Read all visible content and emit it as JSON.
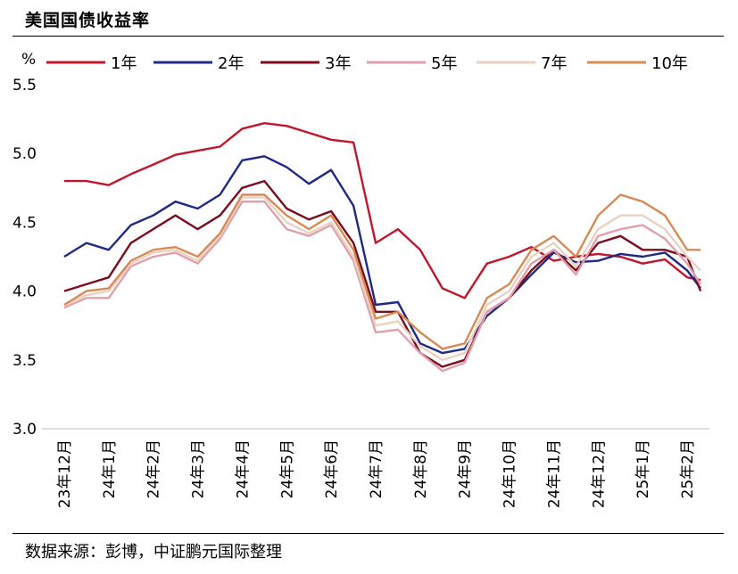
{
  "header": {
    "title": "美国国债收益率"
  },
  "footer": {
    "source": "数据来源：彭博，中证鹏元国际整理"
  },
  "chart_data": {
    "type": "line",
    "unit_label": "%",
    "ylim": [
      3.0,
      5.5
    ],
    "y_ticks": [
      3.0,
      3.5,
      4.0,
      4.5,
      5.0,
      5.5
    ],
    "y_tick_labels": [
      "3.0",
      "3.5",
      "4.0",
      "4.5",
      "5.0",
      "5.5"
    ],
    "x_tick_labels": [
      "23年12月",
      "24年1月",
      "24年2月",
      "24年3月",
      "24年4月",
      "24年5月",
      "24年6月",
      "24年7月",
      "24年8月",
      "24年9月",
      "24年10月",
      "24年11月",
      "24年12月",
      "25年1月",
      "25年2月"
    ],
    "grid": false,
    "legend_position": "top",
    "x_index": [
      0,
      0.5,
      1,
      1.5,
      2,
      2.5,
      3,
      3.5,
      4,
      4.5,
      5,
      5.5,
      6,
      6.5,
      7,
      7.5,
      8,
      8.5,
      9,
      9.5,
      10,
      10.5,
      11,
      11.5,
      12,
      12.5,
      13,
      13.5,
      14,
      14.3
    ],
    "series": [
      {
        "name": "1年",
        "color": "#c0172b",
        "values": [
          4.8,
          4.8,
          4.77,
          4.85,
          4.92,
          4.99,
          5.02,
          5.05,
          5.18,
          5.22,
          5.2,
          5.15,
          5.1,
          5.08,
          4.35,
          4.45,
          4.3,
          4.02,
          3.95,
          4.2,
          4.25,
          4.32,
          4.22,
          4.25,
          4.27,
          4.25,
          4.2,
          4.23,
          4.1,
          4.08
        ]
      },
      {
        "name": "2年",
        "color": "#1f2a85",
        "values": [
          4.25,
          4.35,
          4.3,
          4.48,
          4.55,
          4.65,
          4.6,
          4.7,
          4.95,
          4.98,
          4.9,
          4.78,
          4.88,
          4.62,
          3.9,
          3.92,
          3.62,
          3.55,
          3.58,
          3.82,
          3.95,
          4.12,
          4.28,
          4.21,
          4.22,
          4.27,
          4.25,
          4.28,
          4.15,
          4.02
        ]
      },
      {
        "name": "3年",
        "color": "#7b0d1e",
        "values": [
          4.0,
          4.05,
          4.1,
          4.35,
          4.45,
          4.55,
          4.45,
          4.55,
          4.75,
          4.8,
          4.6,
          4.52,
          4.58,
          4.35,
          3.85,
          3.85,
          3.55,
          3.45,
          3.5,
          3.85,
          3.95,
          4.15,
          4.3,
          4.15,
          4.35,
          4.4,
          4.3,
          4.3,
          4.25,
          4.0
        ]
      },
      {
        "name": "5年",
        "color": "#e0a0ab",
        "values": [
          3.88,
          3.95,
          3.95,
          4.18,
          4.25,
          4.28,
          4.2,
          4.38,
          4.65,
          4.65,
          4.45,
          4.4,
          4.48,
          4.22,
          3.7,
          3.72,
          3.55,
          3.42,
          3.48,
          3.85,
          3.95,
          4.2,
          4.3,
          4.12,
          4.4,
          4.45,
          4.48,
          4.38,
          4.2,
          4.05
        ]
      },
      {
        "name": "7年",
        "color": "#e9d2c4",
        "values": [
          3.9,
          3.97,
          4.0,
          4.2,
          4.28,
          4.3,
          4.22,
          4.4,
          4.68,
          4.68,
          4.5,
          4.42,
          4.5,
          4.25,
          3.75,
          3.78,
          3.6,
          3.5,
          3.55,
          3.9,
          4.0,
          4.25,
          4.35,
          4.18,
          4.45,
          4.55,
          4.55,
          4.45,
          4.25,
          4.15
        ]
      },
      {
        "name": "10年",
        "color": "#d78b55",
        "values": [
          3.9,
          4.0,
          4.02,
          4.22,
          4.3,
          4.32,
          4.25,
          4.42,
          4.7,
          4.7,
          4.55,
          4.45,
          4.55,
          4.3,
          3.8,
          3.85,
          3.7,
          3.58,
          3.62,
          3.95,
          4.05,
          4.3,
          4.4,
          4.25,
          4.55,
          4.7,
          4.65,
          4.55,
          4.3,
          4.3
        ]
      }
    ]
  }
}
